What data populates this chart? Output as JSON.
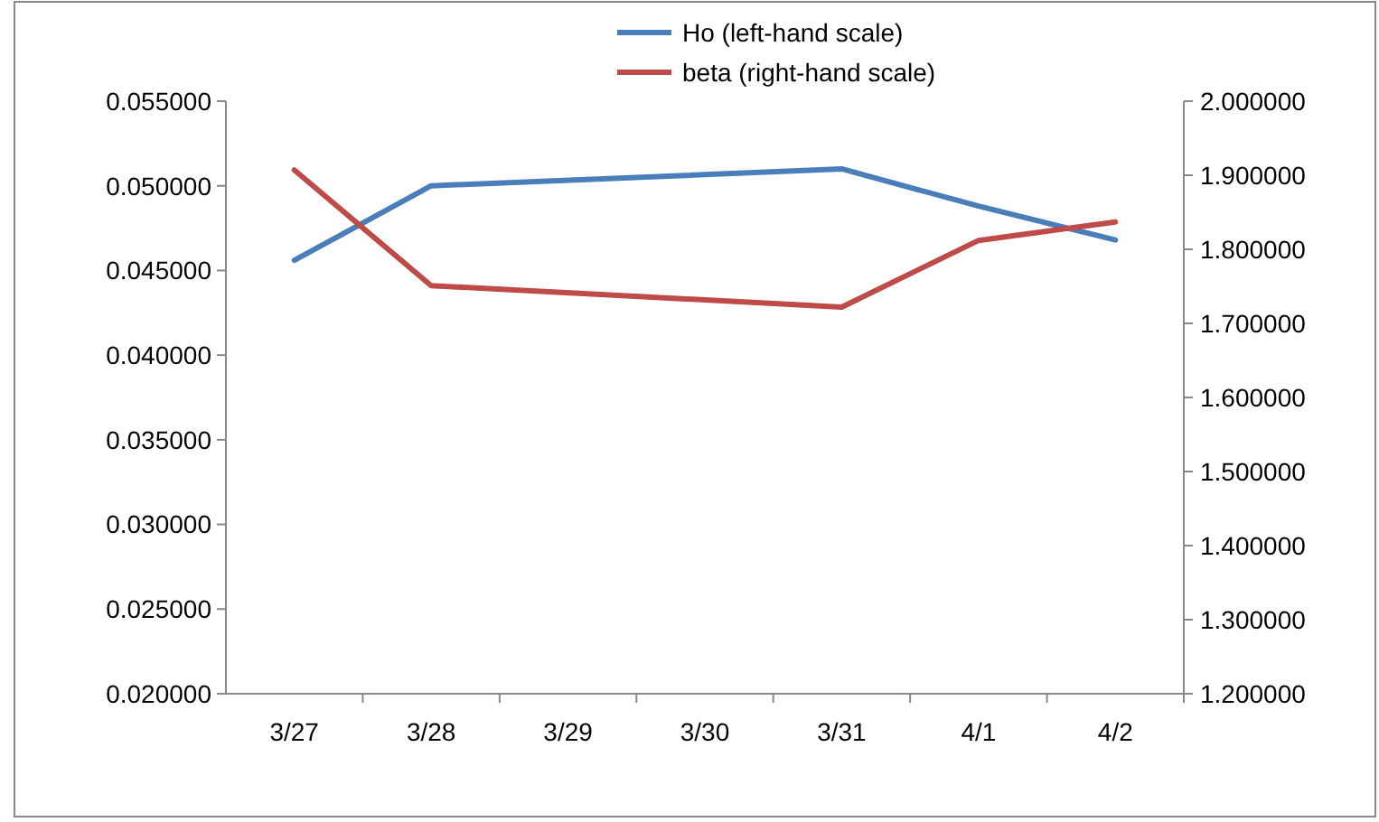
{
  "chart_data": {
    "type": "line",
    "categories": [
      "3/27",
      "3/28",
      "3/29",
      "3/30",
      "3/31",
      "4/1",
      "4/2"
    ],
    "series": [
      {
        "name": "Ho (left-hand scale)",
        "color": "#4a7ebb",
        "x": [
          "3/27",
          "3/28",
          "3/31",
          "4/1",
          "4/2"
        ],
        "values": [
          0.0456,
          0.05,
          0.051,
          0.0488,
          0.0468
        ]
      },
      {
        "name": "beta (right-hand scale)",
        "color": "#be4b48",
        "axis": "y2",
        "x": [
          "3/27",
          "3/28",
          "3/31",
          "4/1",
          "4/2"
        ],
        "values": [
          1.907,
          1.751,
          1.722,
          1.812,
          1.837
        ]
      }
    ],
    "ylim": [
      0.02,
      0.055
    ],
    "yticks": [
      {
        "value": 0.02,
        "label": "0.020000"
      },
      {
        "value": 0.025,
        "label": "0.025000"
      },
      {
        "value": 0.03,
        "label": "0.030000"
      },
      {
        "value": 0.035,
        "label": "0.035000"
      },
      {
        "value": 0.04,
        "label": "0.040000"
      },
      {
        "value": 0.045,
        "label": "0.045000"
      },
      {
        "value": 0.05,
        "label": "0.050000"
      },
      {
        "value": 0.055,
        "label": "0.055000"
      }
    ],
    "y2lim": [
      1.2,
      2.0
    ],
    "y2ticks": [
      {
        "value": 1.2,
        "label": "1.200000"
      },
      {
        "value": 1.3,
        "label": "1.300000"
      },
      {
        "value": 1.4,
        "label": "1.400000"
      },
      {
        "value": 1.5,
        "label": "1.500000"
      },
      {
        "value": 1.6,
        "label": "1.600000"
      },
      {
        "value": 1.7,
        "label": "1.700000"
      },
      {
        "value": 1.8,
        "label": "1.800000"
      },
      {
        "value": 1.9,
        "label": "1.900000"
      },
      {
        "value": 2.0,
        "label": "2.000000"
      }
    ],
    "legend": "top",
    "grid": false,
    "line_style": "solid",
    "marker": "none"
  }
}
